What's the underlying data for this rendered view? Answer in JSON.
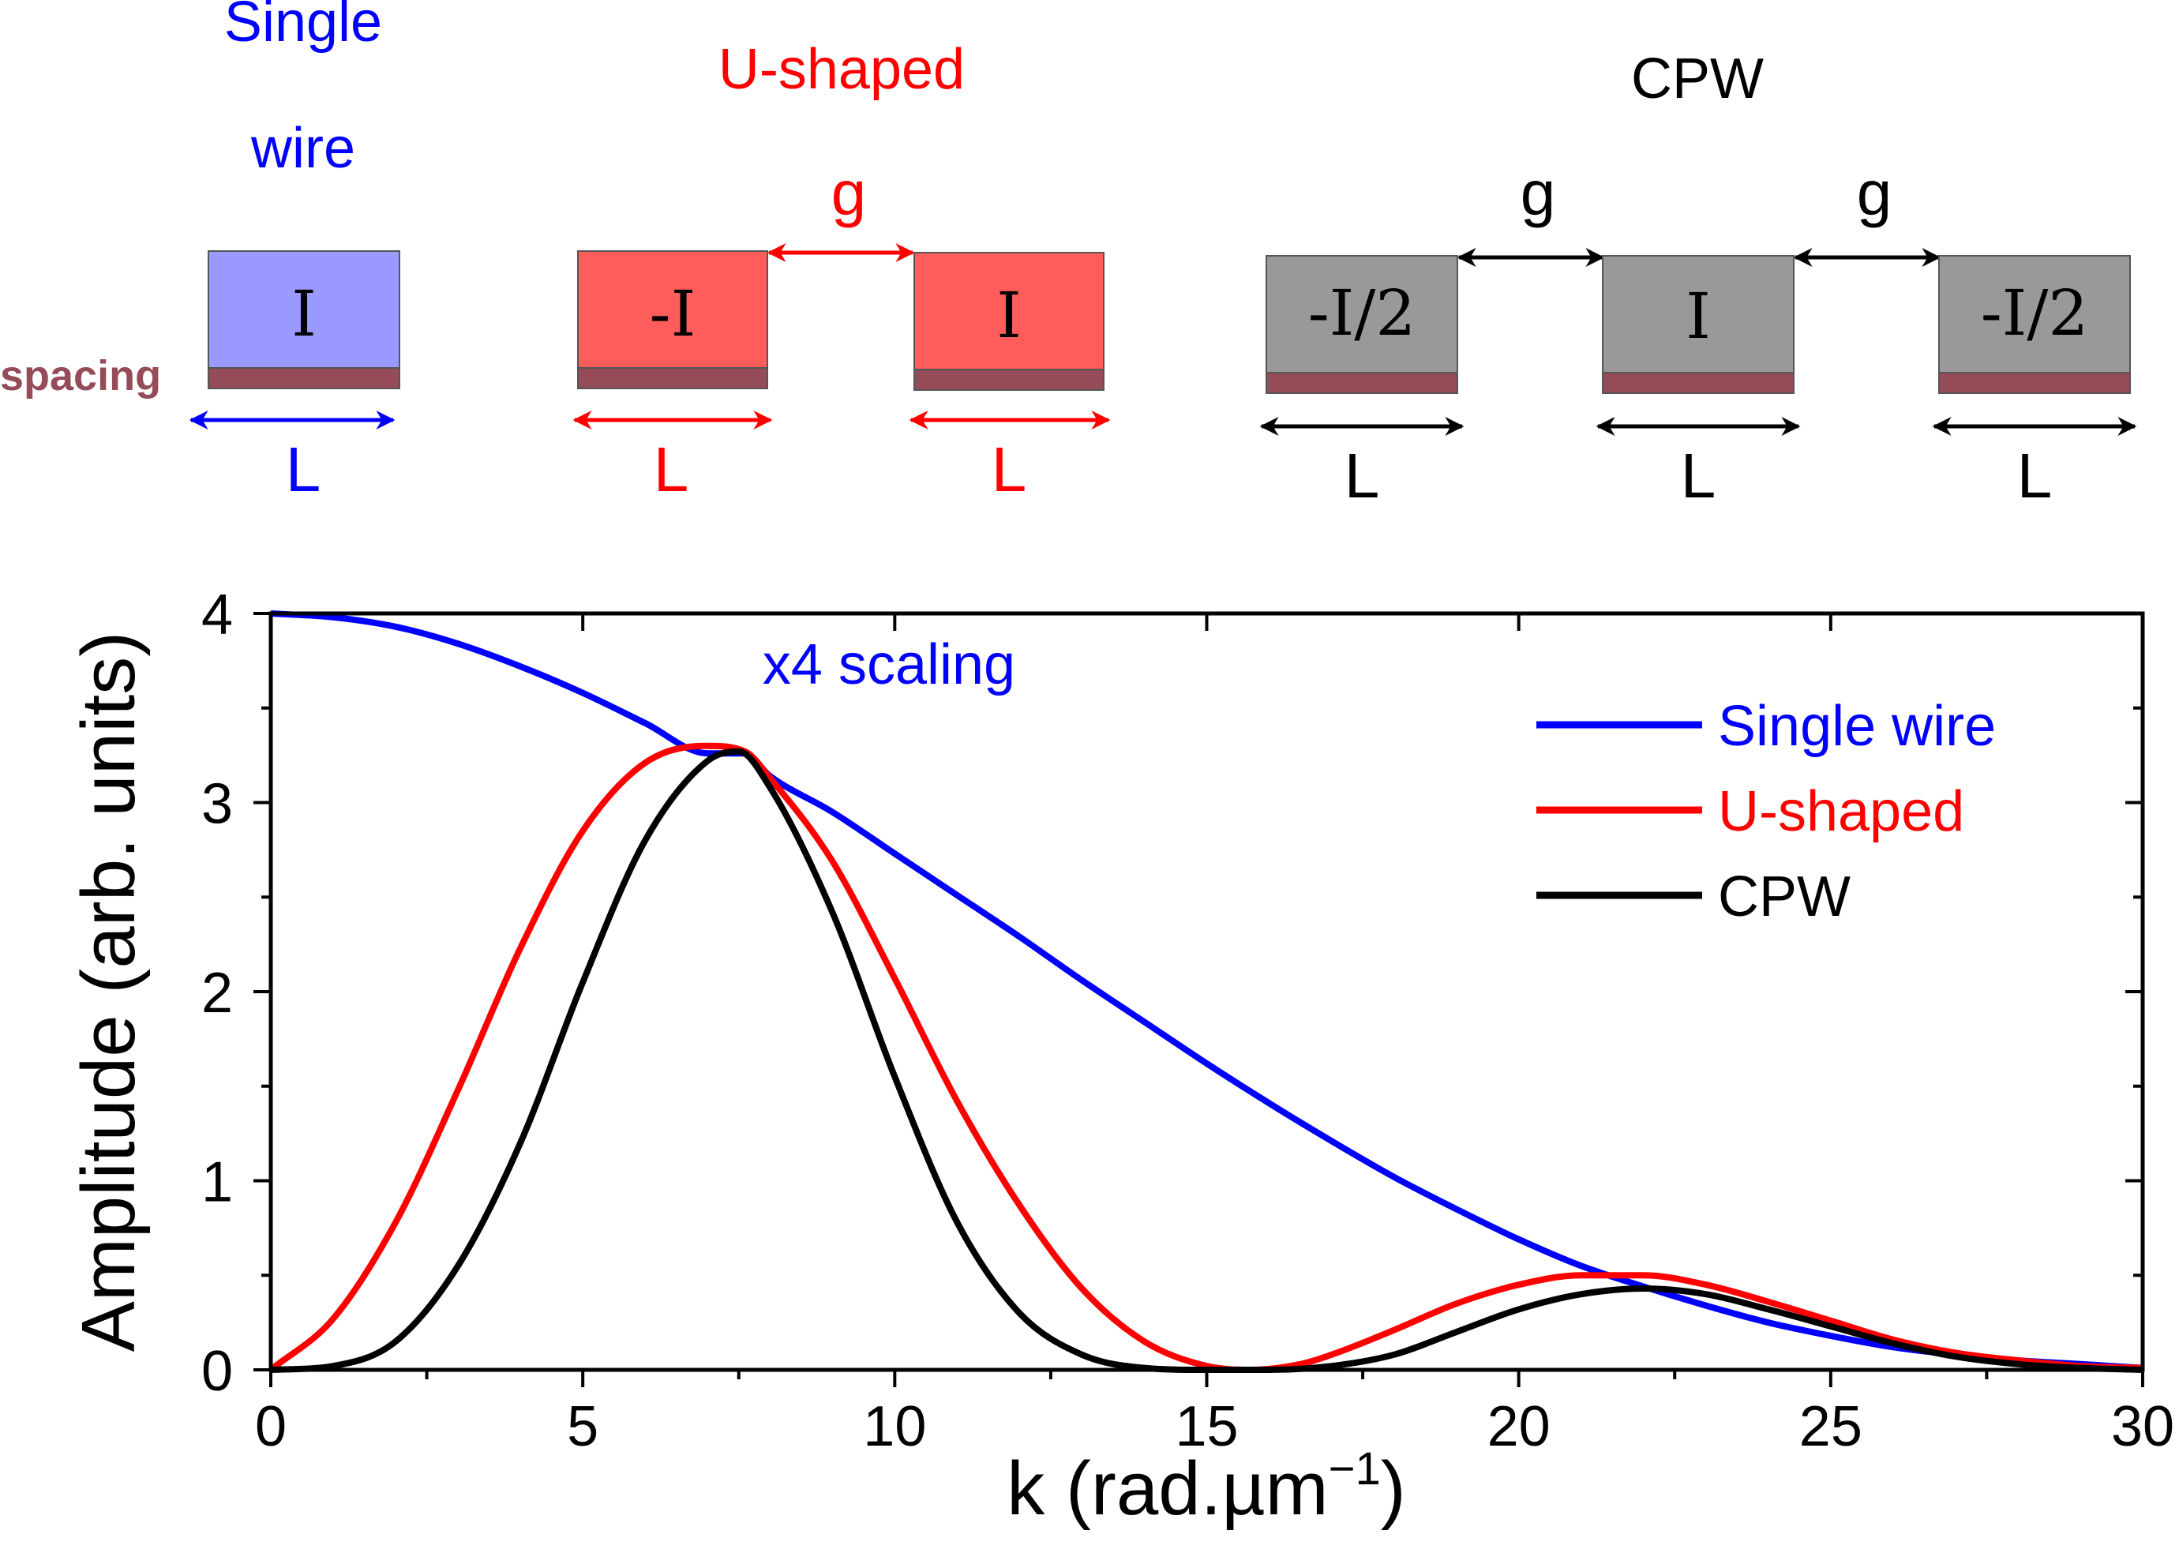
{
  "colors": {
    "single": "#0000ff",
    "ushaped": "#ff0000",
    "cpw": "#000000",
    "single_fill": "#9999ff",
    "ushaped_fill": "#ff5c5c",
    "cpw_fill": "#999999",
    "spacing_fill": "#954c58"
  },
  "diagram": {
    "single": {
      "title_line1": "Single",
      "title_line2": "wire",
      "box_label": "I",
      "spacing_label": "spacing",
      "length_label": "L"
    },
    "ushaped": {
      "title": "U-shaped",
      "gap_label": "g",
      "left_box_label": "-I",
      "right_box_label": "I",
      "left_length_label": "L",
      "right_length_label": "L"
    },
    "cpw": {
      "title": "CPW",
      "gap_left_label": "g",
      "gap_right_label": "g",
      "left_box_label": "-I/2",
      "center_box_label": "I",
      "right_box_label": "-I/2",
      "left_length_label": "L",
      "center_length_label": "L",
      "right_length_label": "L"
    }
  },
  "chart_data": {
    "type": "line",
    "xlabel": "k (rad.µm",
    "xlabel_sup": "−1",
    "xlabel_end": ")",
    "ylabel": "Amplitude (arb. units)",
    "xlim": [
      0,
      30
    ],
    "ylim": [
      0,
      4
    ],
    "xticks": [
      "0",
      "5",
      "10",
      "15",
      "20",
      "25",
      "30"
    ],
    "yticks": [
      "0",
      "1",
      "2",
      "3",
      "4"
    ],
    "annotation": "x4 scaling",
    "legend_position": "top-right",
    "series": [
      {
        "name": "Single wire",
        "color": "#0000ff",
        "x": [
          0,
          1,
          2,
          3,
          4,
          5,
          6,
          7,
          7.6,
          8,
          9,
          10,
          11,
          12,
          13,
          14,
          15,
          16,
          17,
          18,
          19,
          20,
          21,
          22,
          23,
          24,
          25,
          26,
          27,
          28,
          29,
          30
        ],
        "y": [
          4.0,
          3.98,
          3.93,
          3.84,
          3.72,
          3.58,
          3.42,
          3.26,
          3.26,
          3.14,
          2.95,
          2.73,
          2.51,
          2.29,
          2.06,
          1.84,
          1.62,
          1.41,
          1.21,
          1.02,
          0.85,
          0.69,
          0.55,
          0.44,
          0.34,
          0.25,
          0.18,
          0.12,
          0.08,
          0.05,
          0.03,
          0.01
        ]
      },
      {
        "name": "U-shaped",
        "color": "#ff0000",
        "x": [
          0,
          1,
          2,
          3,
          4,
          5,
          6,
          7,
          7.6,
          8,
          9,
          10,
          11,
          12,
          13,
          14,
          15,
          15.7,
          16.5,
          17,
          18,
          19,
          20,
          21,
          22,
          23,
          24,
          25,
          26,
          27,
          28,
          29,
          30
        ],
        "y": [
          0.0,
          0.27,
          0.78,
          1.48,
          2.23,
          2.85,
          3.21,
          3.3,
          3.27,
          3.13,
          2.69,
          2.07,
          1.42,
          0.87,
          0.43,
          0.15,
          0.02,
          0.0,
          0.03,
          0.08,
          0.21,
          0.35,
          0.45,
          0.5,
          0.5,
          0.45,
          0.36,
          0.26,
          0.16,
          0.09,
          0.05,
          0.02,
          0.01
        ]
      },
      {
        "name": "CPW",
        "color": "#000000",
        "x": [
          0,
          1,
          2,
          3,
          4,
          5,
          6,
          7,
          7.5,
          8,
          9,
          10,
          11,
          12,
          13,
          14,
          15,
          16,
          17,
          18,
          19,
          20,
          21,
          22,
          23,
          24,
          25,
          26,
          27,
          28,
          29,
          30
        ],
        "y": [
          0.0,
          0.02,
          0.15,
          0.55,
          1.2,
          2.05,
          2.8,
          3.22,
          3.27,
          3.08,
          2.42,
          1.55,
          0.78,
          0.3,
          0.08,
          0.01,
          0.0,
          0.0,
          0.02,
          0.08,
          0.2,
          0.32,
          0.4,
          0.43,
          0.4,
          0.32,
          0.23,
          0.14,
          0.07,
          0.03,
          0.01,
          0.0
        ]
      }
    ]
  }
}
